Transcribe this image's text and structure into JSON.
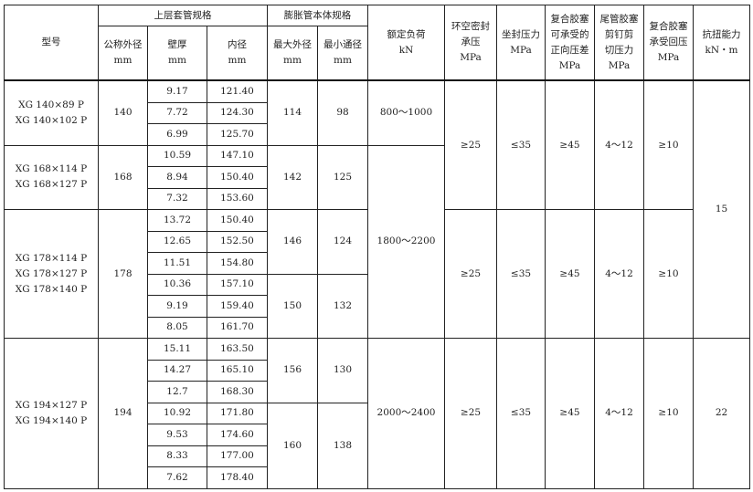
{
  "header": {
    "model": "型号",
    "upper_casing": "上层套管规格",
    "expansion_body": "膨胀管本体规格",
    "od": "公称外径\nmm",
    "wall": "壁厚\nmm",
    "id": "内径\nmm",
    "max_od": "最大外径\nmm",
    "min_bore": "最小通径\nmm",
    "load": "额定负荷\nkN",
    "annular": "环空密封\n承压\nMPa",
    "setting": "坐封压力\nMPa",
    "forward": "复合胶塞\n可承受的\n正向压差\nMPa",
    "shear": "尾管胶塞\n剪钉剪\n切压力\nMPa",
    "back": "复合胶塞\n承受回压\nMPa",
    "torque": "抗扭能力\nkN・m"
  },
  "rows": [
    {
      "wall": "9.17",
      "id": "121.40"
    },
    {
      "wall": "7.72",
      "id": "124.30"
    },
    {
      "wall": "6.99",
      "id": "125.70"
    },
    {
      "wall": "10.59",
      "id": "147.10"
    },
    {
      "wall": "8.94",
      "id": "150.40"
    },
    {
      "wall": "7.32",
      "id": "153.60"
    },
    {
      "wall": "13.72",
      "id": "150.40"
    },
    {
      "wall": "12.65",
      "id": "152.50"
    },
    {
      "wall": "11.51",
      "id": "154.80"
    },
    {
      "wall": "10.36",
      "id": "157.10"
    },
    {
      "wall": "9.19",
      "id": "159.40"
    },
    {
      "wall": "8.05",
      "id": "161.70"
    },
    {
      "wall": "15.11",
      "id": "163.50"
    },
    {
      "wall": "14.27",
      "id": "165.10"
    },
    {
      "wall": "12.7",
      "id": "168.30"
    },
    {
      "wall": "10.92",
      "id": "171.80"
    },
    {
      "wall": "9.53",
      "id": "174.60"
    },
    {
      "wall": "8.33",
      "id": "177.00"
    },
    {
      "wall": "7.62",
      "id": "178.40"
    }
  ],
  "spans": {
    "model": [
      {
        "start": 0,
        "span": 3,
        "value": "XG 140×89 P\nXG 140×102 P"
      },
      {
        "start": 3,
        "span": 3,
        "value": "XG 168×114 P\nXG 168×127 P"
      },
      {
        "start": 6,
        "span": 6,
        "value": "XG 178×114 P\nXG 178×127 P\nXG 178×140 P"
      },
      {
        "start": 12,
        "span": 7,
        "value": "XG 194×127 P\nXG 194×140 P"
      }
    ],
    "od": [
      {
        "start": 0,
        "span": 3,
        "value": "140"
      },
      {
        "start": 3,
        "span": 3,
        "value": "168"
      },
      {
        "start": 6,
        "span": 6,
        "value": "178"
      },
      {
        "start": 12,
        "span": 7,
        "value": "194"
      }
    ],
    "max_od": [
      {
        "start": 0,
        "span": 3,
        "value": "114"
      },
      {
        "start": 3,
        "span": 3,
        "value": "142"
      },
      {
        "start": 6,
        "span": 3,
        "value": "146"
      },
      {
        "start": 9,
        "span": 3,
        "value": "150"
      },
      {
        "start": 12,
        "span": 3,
        "value": "156"
      },
      {
        "start": 15,
        "span": 4,
        "value": "160"
      }
    ],
    "min_bore": [
      {
        "start": 0,
        "span": 3,
        "value": "98"
      },
      {
        "start": 3,
        "span": 3,
        "value": "125"
      },
      {
        "start": 6,
        "span": 3,
        "value": "124"
      },
      {
        "start": 9,
        "span": 3,
        "value": "132"
      },
      {
        "start": 12,
        "span": 3,
        "value": "130"
      },
      {
        "start": 15,
        "span": 4,
        "value": "138"
      }
    ],
    "load": [
      {
        "start": 0,
        "span": 3,
        "value": "800～1000"
      },
      {
        "start": 3,
        "span": 9,
        "value": "1800～2200"
      },
      {
        "start": 12,
        "span": 7,
        "value": "2000～2400"
      }
    ],
    "annular": [
      {
        "start": 0,
        "span": 6,
        "value": "≥25"
      },
      {
        "start": 6,
        "span": 6,
        "value": "≥25"
      },
      {
        "start": 12,
        "span": 7,
        "value": "≥25"
      }
    ],
    "setting": [
      {
        "start": 0,
        "span": 6,
        "value": "≤35"
      },
      {
        "start": 6,
        "span": 6,
        "value": "≤35"
      },
      {
        "start": 12,
        "span": 7,
        "value": "≤35"
      }
    ],
    "forward": [
      {
        "start": 0,
        "span": 6,
        "value": "≥45"
      },
      {
        "start": 6,
        "span": 6,
        "value": "≥45"
      },
      {
        "start": 12,
        "span": 7,
        "value": "≥45"
      }
    ],
    "shear": [
      {
        "start": 0,
        "span": 6,
        "value": "4～12"
      },
      {
        "start": 6,
        "span": 6,
        "value": "4～12"
      },
      {
        "start": 12,
        "span": 7,
        "value": "4～12"
      }
    ],
    "back": [
      {
        "start": 0,
        "span": 6,
        "value": "≥10"
      },
      {
        "start": 6,
        "span": 6,
        "value": "≥10"
      },
      {
        "start": 12,
        "span": 7,
        "value": "≥10"
      }
    ],
    "torque": [
      {
        "start": 0,
        "span": 12,
        "value": "15"
      },
      {
        "start": 12,
        "span": 7,
        "value": "22"
      }
    ]
  }
}
